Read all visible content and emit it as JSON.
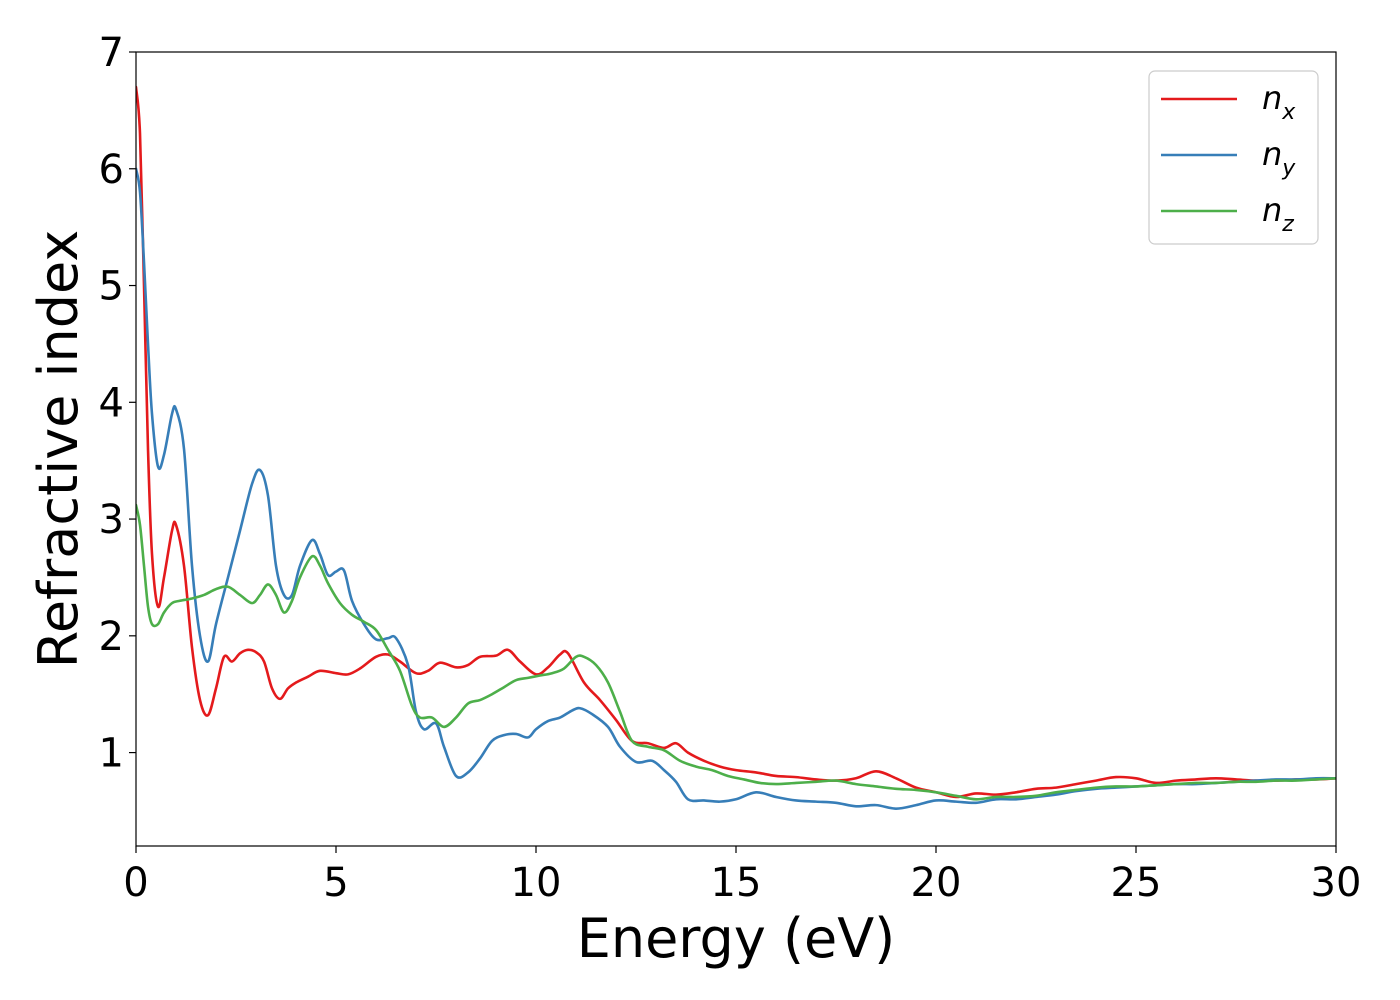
{
  "chart_data": {
    "type": "line",
    "title": "",
    "xlabel": "Energy (eV)",
    "ylabel": "Refractive index",
    "xlim": [
      0,
      30
    ],
    "ylim": [
      0.2,
      7
    ],
    "xticks": [
      0,
      5,
      10,
      15,
      20,
      25,
      30
    ],
    "yticks": [
      1,
      2,
      3,
      4,
      5,
      6,
      7
    ],
    "grid": false,
    "legend_position": "top-right",
    "series": [
      {
        "name": "n",
        "subscript": "x",
        "color": "#e41a1c",
        "x": [
          0,
          0.1,
          0.2,
          0.3,
          0.4,
          0.55,
          0.7,
          0.9,
          1.0,
          1.2,
          1.4,
          1.6,
          1.8,
          2.0,
          2.2,
          2.4,
          2.6,
          2.8,
          3.0,
          3.2,
          3.4,
          3.6,
          3.8,
          4.0,
          4.3,
          4.6,
          5.0,
          5.3,
          5.6,
          6.0,
          6.3,
          6.6,
          7.0,
          7.3,
          7.6,
          8.0,
          8.3,
          8.6,
          9.0,
          9.3,
          9.6,
          10.0,
          10.3,
          10.6,
          10.8,
          11.2,
          11.6,
          12.0,
          12.4,
          12.8,
          13.2,
          13.5,
          13.8,
          14.2,
          14.6,
          15.0,
          15.5,
          16.0,
          16.5,
          17.0,
          17.5,
          18.0,
          18.5,
          19.0,
          19.5,
          20.0,
          20.5,
          21.0,
          21.5,
          22.0,
          22.5,
          23.0,
          23.5,
          24.0,
          24.5,
          25.0,
          25.5,
          26.0,
          26.5,
          27.0,
          27.5,
          28.0,
          28.5,
          29.0,
          29.5,
          30.0
        ],
        "y": [
          6.7,
          6.3,
          5.0,
          3.6,
          2.7,
          2.25,
          2.5,
          2.9,
          2.95,
          2.6,
          1.9,
          1.45,
          1.32,
          1.55,
          1.82,
          1.78,
          1.85,
          1.88,
          1.86,
          1.78,
          1.55,
          1.46,
          1.55,
          1.6,
          1.65,
          1.7,
          1.68,
          1.67,
          1.72,
          1.82,
          1.84,
          1.78,
          1.68,
          1.7,
          1.77,
          1.73,
          1.75,
          1.82,
          1.83,
          1.88,
          1.78,
          1.67,
          1.73,
          1.84,
          1.85,
          1.6,
          1.45,
          1.28,
          1.1,
          1.08,
          1.04,
          1.08,
          1.0,
          0.93,
          0.88,
          0.85,
          0.83,
          0.8,
          0.79,
          0.77,
          0.76,
          0.78,
          0.84,
          0.78,
          0.7,
          0.66,
          0.62,
          0.65,
          0.64,
          0.66,
          0.69,
          0.7,
          0.73,
          0.76,
          0.79,
          0.78,
          0.74,
          0.76,
          0.77,
          0.78,
          0.77,
          0.76,
          0.76,
          0.77,
          0.77,
          0.78
        ]
      },
      {
        "name": "n",
        "subscript": "y",
        "color": "#377eb8",
        "x": [
          0,
          0.1,
          0.2,
          0.3,
          0.4,
          0.55,
          0.7,
          0.9,
          1.0,
          1.2,
          1.4,
          1.6,
          1.8,
          2.0,
          2.3,
          2.6,
          2.9,
          3.1,
          3.3,
          3.5,
          3.7,
          3.9,
          4.1,
          4.4,
          4.6,
          4.8,
          5.0,
          5.2,
          5.4,
          5.7,
          6.0,
          6.3,
          6.5,
          6.8,
          7.0,
          7.2,
          7.5,
          7.7,
          8.0,
          8.3,
          8.6,
          8.9,
          9.2,
          9.5,
          9.8,
          10.0,
          10.3,
          10.6,
          10.9,
          11.1,
          11.4,
          11.8,
          12.1,
          12.5,
          12.9,
          13.2,
          13.5,
          13.8,
          14.2,
          14.6,
          15.0,
          15.5,
          16.0,
          16.5,
          17.0,
          17.5,
          18.0,
          18.5,
          19.0,
          19.5,
          20.0,
          20.5,
          21.0,
          21.5,
          22.0,
          22.5,
          23.0,
          23.5,
          24.0,
          24.5,
          25.0,
          25.5,
          26.0,
          26.5,
          27.0,
          27.5,
          28.0,
          28.5,
          29.0,
          29.5,
          30.0
        ],
        "y": [
          6.0,
          5.8,
          5.2,
          4.5,
          3.9,
          3.45,
          3.55,
          3.9,
          3.94,
          3.6,
          2.6,
          2.0,
          1.78,
          2.1,
          2.5,
          2.9,
          3.3,
          3.42,
          3.2,
          2.6,
          2.35,
          2.35,
          2.6,
          2.82,
          2.7,
          2.52,
          2.55,
          2.56,
          2.3,
          2.1,
          1.97,
          1.98,
          1.98,
          1.75,
          1.35,
          1.2,
          1.25,
          1.05,
          0.8,
          0.83,
          0.95,
          1.1,
          1.15,
          1.16,
          1.13,
          1.2,
          1.27,
          1.3,
          1.36,
          1.38,
          1.33,
          1.22,
          1.05,
          0.92,
          0.93,
          0.85,
          0.75,
          0.6,
          0.59,
          0.58,
          0.6,
          0.66,
          0.62,
          0.59,
          0.58,
          0.57,
          0.54,
          0.55,
          0.52,
          0.55,
          0.59,
          0.58,
          0.57,
          0.6,
          0.6,
          0.62,
          0.64,
          0.67,
          0.69,
          0.7,
          0.71,
          0.72,
          0.73,
          0.73,
          0.74,
          0.75,
          0.76,
          0.77,
          0.77,
          0.78,
          0.78
        ]
      },
      {
        "name": "n",
        "subscript": "z",
        "color": "#4daf4a",
        "x": [
          0,
          0.1,
          0.2,
          0.3,
          0.4,
          0.55,
          0.7,
          0.9,
          1.1,
          1.4,
          1.7,
          2.0,
          2.3,
          2.6,
          2.9,
          3.1,
          3.3,
          3.5,
          3.7,
          3.9,
          4.1,
          4.4,
          4.6,
          4.8,
          5.1,
          5.4,
          5.7,
          6.0,
          6.3,
          6.6,
          6.9,
          7.1,
          7.4,
          7.7,
          8.0,
          8.3,
          8.6,
          8.9,
          9.2,
          9.5,
          9.8,
          10.1,
          10.4,
          10.7,
          11.0,
          11.2,
          11.5,
          11.8,
          12.1,
          12.4,
          12.8,
          13.2,
          13.6,
          14.0,
          14.4,
          14.8,
          15.2,
          15.6,
          16.0,
          16.5,
          17.0,
          17.5,
          18.0,
          18.5,
          19.0,
          19.5,
          20.0,
          20.5,
          21.0,
          21.5,
          22.0,
          22.5,
          23.0,
          23.5,
          24.0,
          24.5,
          25.0,
          25.5,
          26.0,
          26.5,
          27.0,
          27.5,
          28.0,
          28.5,
          29.0,
          29.5,
          30.0
        ],
        "y": [
          3.12,
          2.95,
          2.6,
          2.25,
          2.1,
          2.1,
          2.2,
          2.28,
          2.3,
          2.32,
          2.35,
          2.4,
          2.42,
          2.35,
          2.28,
          2.35,
          2.44,
          2.35,
          2.2,
          2.3,
          2.5,
          2.68,
          2.6,
          2.45,
          2.28,
          2.18,
          2.12,
          2.05,
          1.88,
          1.7,
          1.4,
          1.3,
          1.3,
          1.22,
          1.3,
          1.42,
          1.45,
          1.5,
          1.56,
          1.62,
          1.64,
          1.66,
          1.68,
          1.72,
          1.82,
          1.82,
          1.75,
          1.6,
          1.35,
          1.1,
          1.05,
          1.02,
          0.93,
          0.88,
          0.85,
          0.8,
          0.77,
          0.74,
          0.73,
          0.74,
          0.75,
          0.76,
          0.73,
          0.71,
          0.69,
          0.68,
          0.66,
          0.63,
          0.6,
          0.62,
          0.62,
          0.63,
          0.66,
          0.68,
          0.7,
          0.71,
          0.71,
          0.72,
          0.73,
          0.74,
          0.74,
          0.75,
          0.75,
          0.76,
          0.76,
          0.77,
          0.78
        ]
      }
    ]
  }
}
